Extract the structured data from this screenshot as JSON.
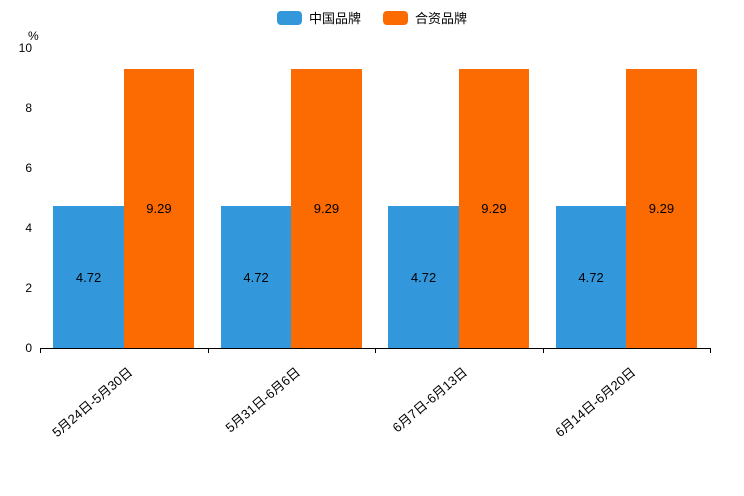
{
  "chart_data": {
    "type": "bar",
    "title": "",
    "unit": "%",
    "categories": [
      "5月24日-5月30日",
      "5月31日-6月6日",
      "6月7日-6月13日",
      "6月14日-6月20日"
    ],
    "series": [
      {
        "name": "中国品牌",
        "color": "#3398db",
        "values": [
          4.72,
          4.72,
          4.72,
          4.72
        ]
      },
      {
        "name": "合资品牌",
        "color": "#fc6a02",
        "values": [
          9.29,
          9.29,
          9.29,
          9.29
        ]
      }
    ],
    "ylim": [
      0,
      10
    ],
    "yticks": [
      0,
      2,
      4,
      6,
      8,
      10
    ],
    "grid": false,
    "legend_position": "top",
    "value_labels": "inside-center"
  }
}
